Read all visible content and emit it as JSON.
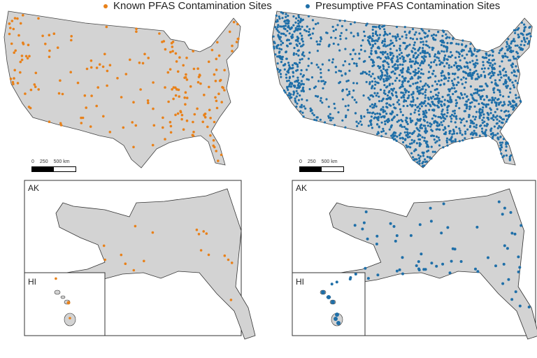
{
  "panels": [
    {
      "title": "Known PFAS Contamination Sites",
      "color": "#E8811A",
      "density": "sparse"
    },
    {
      "title": "Presumptive PFAS Contamination Sites",
      "color": "#1F6FA8",
      "density": "dense"
    }
  ],
  "scale": {
    "ticks": [
      "0",
      "250",
      "500 km"
    ]
  },
  "insets": {
    "alaska": "AK",
    "hawaii": "HI"
  },
  "land_color": "#D3D3D3"
}
